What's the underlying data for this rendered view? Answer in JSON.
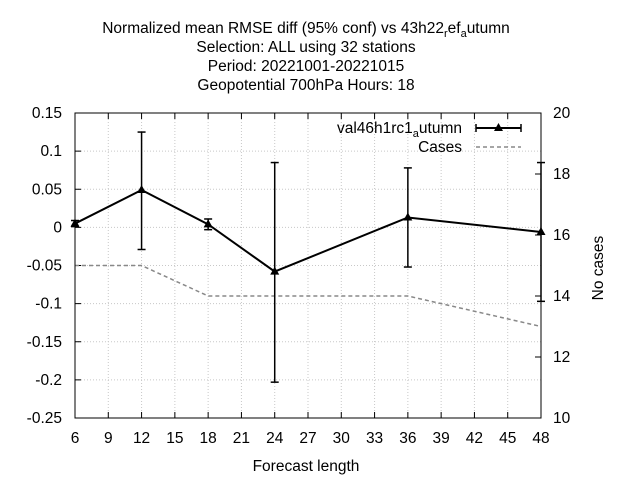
{
  "chart_data": {
    "type": "line",
    "title_lines": [
      "Normalized mean RMSE diff (95% conf) vs 43h22",
      "Selection: ALL using    32 stations",
      "Period: 20221001-20221015",
      "Geopotential 700hPa   Hours:  18"
    ],
    "title_suffix": {
      "a": "r",
      "b": "ef",
      "c": "a",
      "d": "utumn"
    },
    "xlabel": "Forecast length",
    "ylabel": "",
    "y2label": "No cases",
    "xlim": [
      6,
      48
    ],
    "ylim": [
      -0.25,
      0.15
    ],
    "y2lim": [
      10,
      20
    ],
    "x_ticks": [
      6,
      9,
      12,
      15,
      18,
      21,
      24,
      27,
      30,
      33,
      36,
      39,
      42,
      45,
      48
    ],
    "y_ticks": [
      "0.15",
      "0.1",
      "0.05",
      "0",
      "-0.05",
      "-0.1",
      "-0.15",
      "-0.2",
      "-0.25"
    ],
    "y2_ticks": [
      "20",
      "18",
      "16",
      "14",
      "12",
      "10"
    ],
    "grid": true,
    "legend_position": "top-right",
    "series": [
      {
        "name": "val46h1rc1",
        "name_sub": "a",
        "name_rest": "utumn",
        "axis": "y",
        "color": "#000000",
        "x": [
          6,
          12,
          18,
          24,
          36,
          48
        ],
        "y": [
          0.005,
          0.049,
          0.004,
          -0.058,
          0.013,
          -0.006
        ],
        "err_low": [
          0.001,
          -0.029,
          -0.003,
          -0.203,
          -0.052,
          -0.097
        ],
        "err_high": [
          0.009,
          0.125,
          0.011,
          0.085,
          0.078,
          0.085
        ]
      },
      {
        "name": "Cases",
        "axis": "y2",
        "color": "#888888",
        "x": [
          6,
          12,
          18,
          24,
          36,
          48
        ],
        "y": [
          15,
          15,
          14,
          14,
          14,
          13
        ]
      }
    ]
  }
}
